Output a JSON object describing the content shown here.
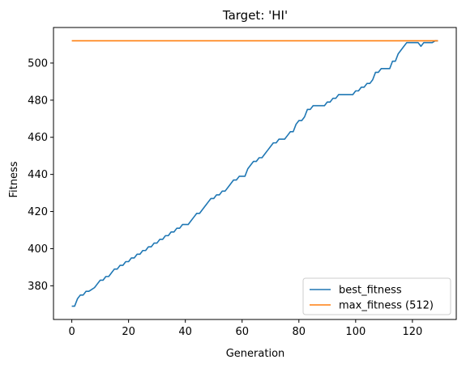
{
  "chart_data": {
    "type": "line",
    "title": "Target: 'HI'",
    "xlabel": "Generation",
    "ylabel": "Fitness",
    "xlim": [
      -6.45,
      135.45
    ],
    "ylim": [
      361.85,
      519.15
    ],
    "xticks": [
      0,
      20,
      40,
      60,
      80,
      100,
      120
    ],
    "yticks": [
      380,
      400,
      420,
      440,
      460,
      480,
      500
    ],
    "grid": false,
    "legend_position": "lower right",
    "series": [
      {
        "name": "best_fitness",
        "color": "#1f77b4",
        "x": [
          0,
          1,
          2,
          3,
          4,
          5,
          6,
          7,
          8,
          9,
          10,
          11,
          12,
          13,
          14,
          15,
          16,
          17,
          18,
          19,
          20,
          21,
          22,
          23,
          24,
          25,
          26,
          27,
          28,
          29,
          30,
          31,
          32,
          33,
          34,
          35,
          36,
          37,
          38,
          39,
          40,
          41,
          42,
          43,
          44,
          45,
          46,
          47,
          48,
          49,
          50,
          51,
          52,
          53,
          54,
          55,
          56,
          57,
          58,
          59,
          60,
          61,
          62,
          63,
          64,
          65,
          66,
          67,
          68,
          69,
          70,
          71,
          72,
          73,
          74,
          75,
          76,
          77,
          78,
          79,
          80,
          81,
          82,
          83,
          84,
          85,
          86,
          87,
          88,
          89,
          90,
          91,
          92,
          93,
          94,
          95,
          96,
          97,
          98,
          99,
          100,
          101,
          102,
          103,
          104,
          105,
          106,
          107,
          108,
          109,
          110,
          111,
          112,
          113,
          114,
          115,
          116,
          117,
          118,
          119,
          120,
          121,
          122,
          123,
          124,
          125,
          126,
          127,
          128,
          129
        ],
        "y": [
          369,
          369,
          373,
          375,
          375,
          377,
          377,
          378,
          379,
          381,
          383,
          383,
          385,
          385,
          387,
          389,
          389,
          391,
          391,
          393,
          393,
          395,
          395,
          397,
          397,
          399,
          399,
          401,
          401,
          403,
          403,
          405,
          405,
          407,
          407,
          409,
          409,
          411,
          411,
          413,
          413,
          413,
          415,
          417,
          419,
          419,
          421,
          423,
          425,
          427,
          427,
          429,
          429,
          431,
          431,
          433,
          435,
          437,
          437,
          439,
          439,
          439,
          443,
          445,
          447,
          447,
          449,
          449,
          451,
          453,
          455,
          457,
          457,
          459,
          459,
          459,
          461,
          463,
          463,
          467,
          469,
          469,
          471,
          475,
          475,
          477,
          477,
          477,
          477,
          477,
          479,
          479,
          481,
          481,
          483,
          483,
          483,
          483,
          483,
          483,
          485,
          485,
          487,
          487,
          489,
          489,
          491,
          495,
          495,
          497,
          497,
          497,
          497,
          501,
          501,
          505,
          507,
          509,
          511,
          511,
          511,
          511,
          511,
          509,
          511,
          511,
          511,
          511,
          512,
          512
        ]
      },
      {
        "name": "max_fitness (512)",
        "color": "#ff7f0e",
        "x": [
          0,
          129
        ],
        "y": [
          512,
          512
        ]
      }
    ]
  }
}
